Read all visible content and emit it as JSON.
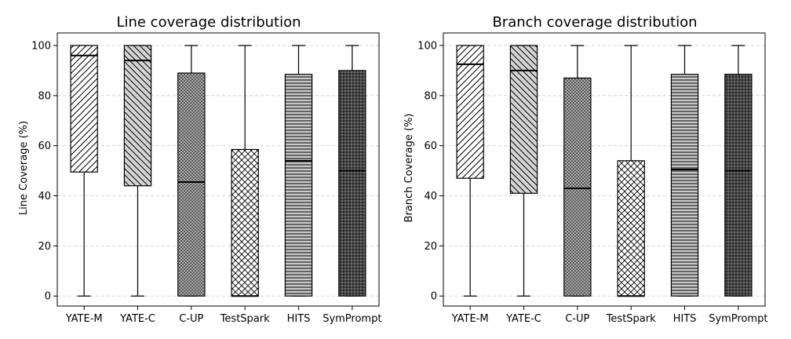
{
  "chart_data": [
    {
      "type": "box",
      "title": "Line coverage distribution",
      "xlabel": "",
      "ylabel": "Line Coverage (%)",
      "ylim": [
        -4,
        105
      ],
      "yticks": [
        0,
        20,
        40,
        60,
        80,
        100
      ],
      "grid": "y-dashed",
      "categories": [
        "YATE-M",
        "YATE-C",
        "C-UP",
        "TestSpark",
        "HITS",
        "SymPrompt"
      ],
      "boxes": [
        {
          "whisker_low": 0,
          "q1": 49.5,
          "median": 96,
          "q3": 100,
          "whisker_high": 100,
          "fill": "#ffffff",
          "pattern": "diag-fwd"
        },
        {
          "whisker_low": 0,
          "q1": 44,
          "median": 94,
          "q3": 100,
          "whisker_high": 100,
          "fill": "#d4d4d4",
          "pattern": "diag-back"
        },
        {
          "whisker_low": 0,
          "q1": 0,
          "median": 45.5,
          "q3": 89,
          "whisker_high": 100,
          "fill": "#a8a8a8",
          "pattern": "dots"
        },
        {
          "whisker_low": 0,
          "q1": 0,
          "median": 0,
          "q3": 58.5,
          "whisker_high": 100,
          "fill": "#ffffff",
          "pattern": "crosshatch"
        },
        {
          "whisker_low": 0,
          "q1": 0,
          "median": 54,
          "q3": 88.5,
          "whisker_high": 100,
          "fill": "#c8c8c8",
          "pattern": "hlines"
        },
        {
          "whisker_low": 0,
          "q1": 0,
          "median": 50,
          "q3": 90,
          "whisker_high": 100,
          "fill": "#6e6e6e",
          "pattern": "grid"
        }
      ]
    },
    {
      "type": "box",
      "title": "Branch coverage distribution",
      "xlabel": "",
      "ylabel": "Branch Coverage (%)",
      "ylim": [
        -4,
        105
      ],
      "yticks": [
        0,
        20,
        40,
        60,
        80,
        100
      ],
      "grid": "y-dashed",
      "categories": [
        "YATE-M",
        "YATE-C",
        "C-UP",
        "TestSpark",
        "HITS",
        "SymPrompt"
      ],
      "boxes": [
        {
          "whisker_low": 0,
          "q1": 47,
          "median": 92.5,
          "q3": 100,
          "whisker_high": 100,
          "fill": "#ffffff",
          "pattern": "diag-fwd"
        },
        {
          "whisker_low": 0,
          "q1": 41,
          "median": 90,
          "q3": 100,
          "whisker_high": 100,
          "fill": "#d4d4d4",
          "pattern": "diag-back"
        },
        {
          "whisker_low": 0,
          "q1": 0,
          "median": 43,
          "q3": 87,
          "whisker_high": 100,
          "fill": "#a8a8a8",
          "pattern": "dots"
        },
        {
          "whisker_low": 0,
          "q1": 0,
          "median": 0,
          "q3": 54,
          "whisker_high": 100,
          "fill": "#ffffff",
          "pattern": "crosshatch"
        },
        {
          "whisker_low": 0,
          "q1": 0,
          "median": 50.5,
          "q3": 88.5,
          "whisker_high": 100,
          "fill": "#c8c8c8",
          "pattern": "hlines"
        },
        {
          "whisker_low": 0,
          "q1": 0,
          "median": 50,
          "q3": 88.5,
          "whisker_high": 100,
          "fill": "#6e6e6e",
          "pattern": "grid"
        }
      ]
    }
  ]
}
